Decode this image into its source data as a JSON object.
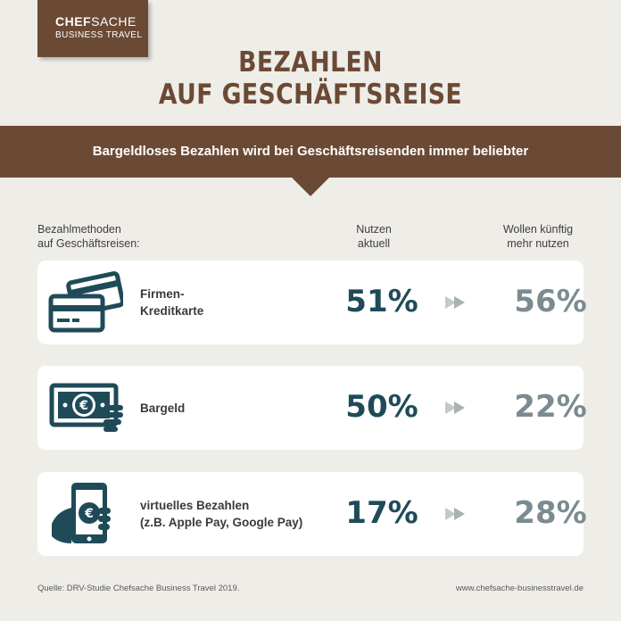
{
  "logo": {
    "brand_bold": "CHEF",
    "brand_light": "SACHE",
    "subtitle": "BUSINESS TRAVEL"
  },
  "title_line1": "BEZAHLEN",
  "title_line2": "AUF GESCHÄFTSREISE",
  "banner_text": "Bargeldloses Bezahlen wird bei Geschäftsreisenden immer beliebter",
  "colors": {
    "brown": "#6b4a35",
    "teal": "#1f4b59",
    "grey": "#7c8b90",
    "background": "#efede8"
  },
  "chart_data": {
    "type": "table",
    "column_headers": {
      "method_line1": "Bezahlmethoden",
      "method_line2": "auf Geschäftsreisen:",
      "current_line1": "Nutzen",
      "current_line2": "aktuell",
      "future_line1": "Wollen künftig",
      "future_line2": "mehr nutzen"
    },
    "rows": [
      {
        "icon": "credit-cards-icon",
        "label_line1": "Firmen-",
        "label_line2": "Kreditkarte",
        "current": 51,
        "future": 56,
        "current_text": "51%",
        "future_text": "56%"
      },
      {
        "icon": "cash-banknote-icon",
        "label_line1": "Bargeld",
        "label_line2": "",
        "current": 50,
        "future": 22,
        "current_text": "50%",
        "future_text": "22%"
      },
      {
        "icon": "mobile-payment-icon",
        "label_line1": "virtuelles Bezahlen",
        "label_line2": "(z.B. Apple Pay, Google Pay)",
        "current": 17,
        "future": 28,
        "current_text": "17%",
        "future_text": "28%"
      }
    ],
    "unit": "%"
  },
  "footer": {
    "source": "Quelle: DRV-Studie Chefsache Business Travel 2019.",
    "website": "www.chefsache-businesstravel.de"
  }
}
